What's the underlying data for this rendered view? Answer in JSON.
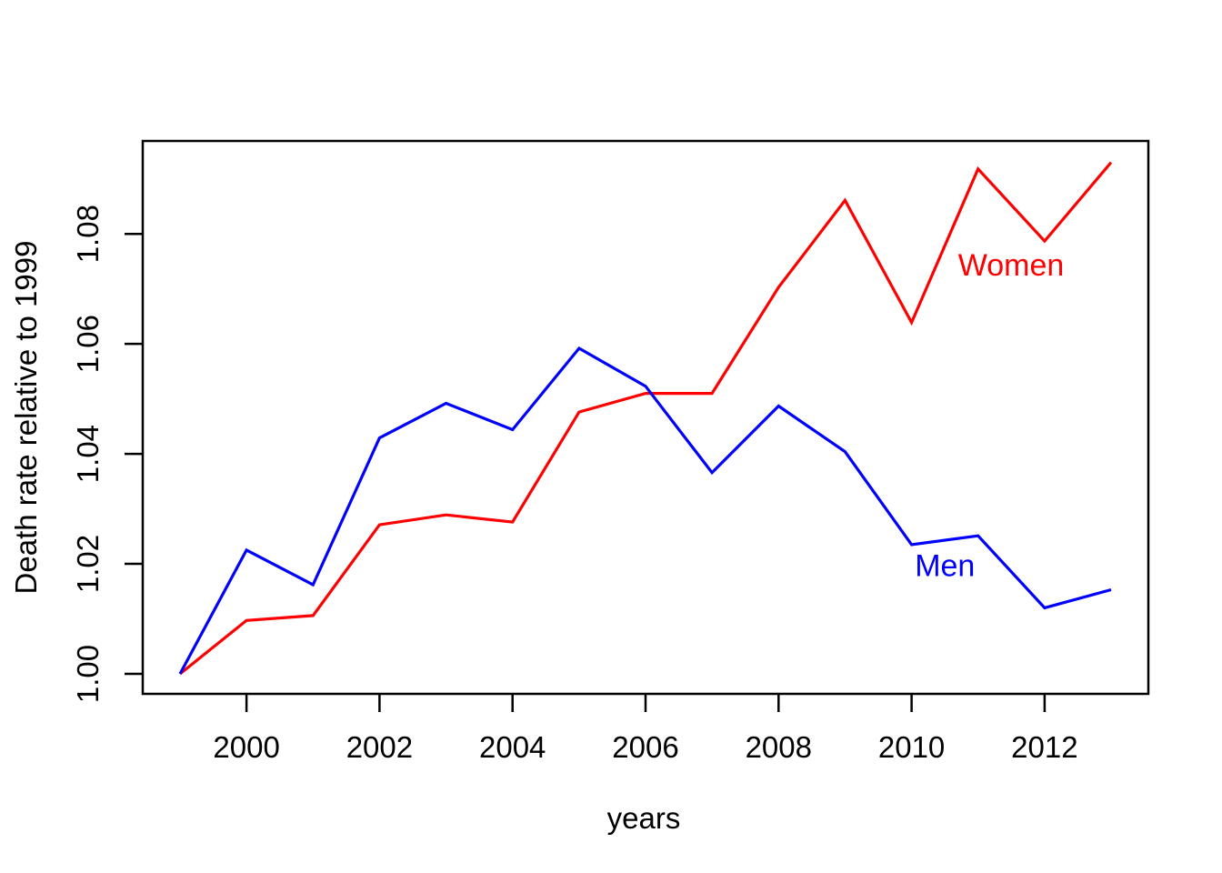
{
  "figure": {
    "background": "#ffffff",
    "axis_color": "#000000",
    "text_color": "#000000"
  },
  "chart_data": {
    "type": "line",
    "title": "",
    "xlabel": "years",
    "ylabel": "Death rate relative to 1999",
    "x": [
      1999,
      2000,
      2001,
      2002,
      2003,
      2004,
      2005,
      2006,
      2007,
      2008,
      2009,
      2010,
      2011,
      2012,
      2013
    ],
    "series": [
      {
        "name": "Women",
        "color": "#FF0000",
        "values": [
          1.0,
          1.0097,
          1.0106,
          1.0271,
          1.0289,
          1.0276,
          1.0476,
          1.051,
          1.051,
          1.0703,
          1.0861,
          1.0639,
          1.0918,
          1.0787,
          1.093
        ]
      },
      {
        "name": "Men",
        "color": "#0000FF",
        "values": [
          1.0,
          1.0225,
          1.0162,
          1.0429,
          1.0492,
          1.0444,
          1.0592,
          1.0523,
          1.0366,
          1.0487,
          1.0404,
          1.0235,
          1.0251,
          1.012,
          1.0153
        ]
      }
    ],
    "x_tick_values": [
      2000,
      2002,
      2004,
      2006,
      2008,
      2010,
      2012
    ],
    "x_tick_labels": [
      "2000",
      "2002",
      "2004",
      "2006",
      "2008",
      "2010",
      "2012"
    ],
    "y_tick_values": [
      1.0,
      1.02,
      1.04,
      1.06,
      1.08
    ],
    "y_tick_labels": [
      "1.00",
      "1.02",
      "1.04",
      "1.06",
      "1.08"
    ],
    "xlim": [
      1998.44,
      2013.56
    ],
    "ylim": [
      0.99636,
      1.0969
    ],
    "grid": false,
    "legend_position": "inline-labels",
    "series_labels": [
      {
        "text": "Women",
        "color": "#FF0000",
        "x": 2010.7,
        "y": 1.0744
      },
      {
        "text": "Men",
        "color": "#0000FF",
        "x": 2010.05,
        "y": 1.0198
      }
    ]
  }
}
